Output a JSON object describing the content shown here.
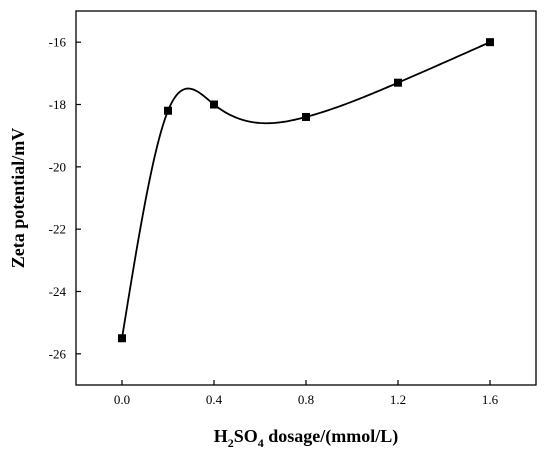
{
  "chart_data": {
    "type": "line",
    "x": [
      0.0,
      0.2,
      0.4,
      0.8,
      1.2,
      1.6
    ],
    "y": [
      -25.5,
      -18.2,
      -18.0,
      -18.4,
      -17.3,
      -16.0
    ],
    "xlabel": {
      "prefix": "H",
      "sub1": "2",
      "mid": "SO",
      "sub2": "4",
      "suffix": " dosage/(mmol/L)"
    },
    "ylabel": "Zeta potential/mV",
    "xlim": [
      -0.2,
      1.8
    ],
    "ylim": [
      -27,
      -15
    ],
    "xticks": [
      0.0,
      0.4,
      0.8,
      1.2,
      1.6
    ],
    "xtick_labels": [
      "0.0",
      "0.4",
      "0.8",
      "1.2",
      "1.6"
    ],
    "yticks": [
      -26,
      -24,
      -22,
      -20,
      -18,
      -16
    ],
    "ytick_labels": [
      "-26",
      "-24",
      "-22",
      "-20",
      "-18",
      "-16"
    ],
    "marker": "square",
    "line_style": "smooth spline",
    "color": "#000000",
    "grid": false,
    "legend": false
  }
}
